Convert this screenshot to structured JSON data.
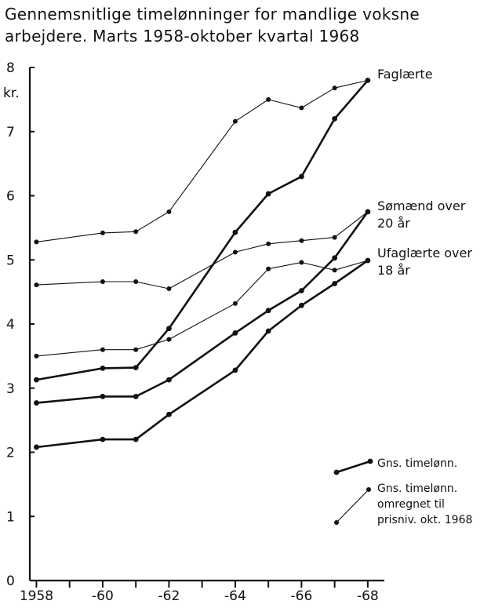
{
  "chart_data": {
    "type": "line",
    "title_line1": "Gennemsnitlige timelønninger for mandlige voksne",
    "title_line2": "arbejdere. Marts 1958-oktober kvartal 1968",
    "ylabel": "kr.",
    "ylim": [
      0,
      8
    ],
    "yticks": [
      "0",
      "1",
      "2",
      "3",
      "4",
      "5",
      "6",
      "7",
      "8"
    ],
    "xticks": [
      {
        "value": 1958,
        "label": "1958"
      },
      {
        "value": 1960,
        "label": "-60"
      },
      {
        "value": 1962,
        "label": "-62"
      },
      {
        "value": 1964,
        "label": "-64"
      },
      {
        "value": 1966,
        "label": "-66"
      },
      {
        "value": 1968,
        "label": "-68"
      }
    ],
    "xlim": [
      1957.8,
      1968.5
    ],
    "groups": [
      {
        "label": [
          "Faglærte"
        ],
        "nominal": {
          "x": [
            1958.0,
            1960.0,
            1961.0,
            1962.0,
            1964.0,
            1965.0,
            1966.0,
            1967.0,
            1968.0
          ],
          "y": [
            3.13,
            3.31,
            3.32,
            3.93,
            5.43,
            6.03,
            6.3,
            7.2,
            7.8
          ]
        },
        "real": {
          "x": [
            1958.0,
            1960.0,
            1961.0,
            1962.0,
            1964.0,
            1965.0,
            1966.0,
            1967.0,
            1968.0
          ],
          "y": [
            5.28,
            5.42,
            5.44,
            5.75,
            7.16,
            7.5,
            7.37,
            7.68,
            7.8
          ]
        }
      },
      {
        "label": [
          "Sømænd over",
          "20 år"
        ],
        "nominal": {
          "x": [
            1958.0,
            1960.0,
            1961.0,
            1962.0,
            1964.0,
            1965.0,
            1966.0,
            1967.0,
            1968.0
          ],
          "y": [
            2.77,
            2.87,
            2.87,
            3.13,
            3.86,
            4.21,
            4.52,
            5.03,
            5.75
          ]
        },
        "real": {
          "x": [
            1958.0,
            1960.0,
            1961.0,
            1962.0,
            1964.0,
            1965.0,
            1966.0,
            1967.0,
            1968.0
          ],
          "y": [
            4.61,
            4.66,
            4.66,
            4.55,
            5.12,
            5.25,
            5.3,
            5.35,
            5.75
          ]
        }
      },
      {
        "label": [
          "Ufaglærte over",
          "18 år"
        ],
        "nominal": {
          "x": [
            1958.0,
            1960.0,
            1961.0,
            1962.0,
            1964.0,
            1965.0,
            1966.0,
            1967.0,
            1968.0
          ],
          "y": [
            2.08,
            2.2,
            2.2,
            2.59,
            3.28,
            3.89,
            4.29,
            4.63,
            4.99
          ]
        },
        "real": {
          "x": [
            1958.0,
            1960.0,
            1961.0,
            1962.0,
            1964.0,
            1965.0,
            1966.0,
            1967.0,
            1968.0
          ],
          "y": [
            3.5,
            3.6,
            3.6,
            3.76,
            4.32,
            4.86,
            4.96,
            4.84,
            4.99
          ]
        }
      }
    ],
    "legend": [
      {
        "style": "nominal",
        "label": [
          "Gns. timelønn."
        ]
      },
      {
        "style": "real",
        "label": [
          "Gns. timelønn.",
          "omregnet til",
          "prisniv. okt. 1968"
        ]
      }
    ]
  }
}
